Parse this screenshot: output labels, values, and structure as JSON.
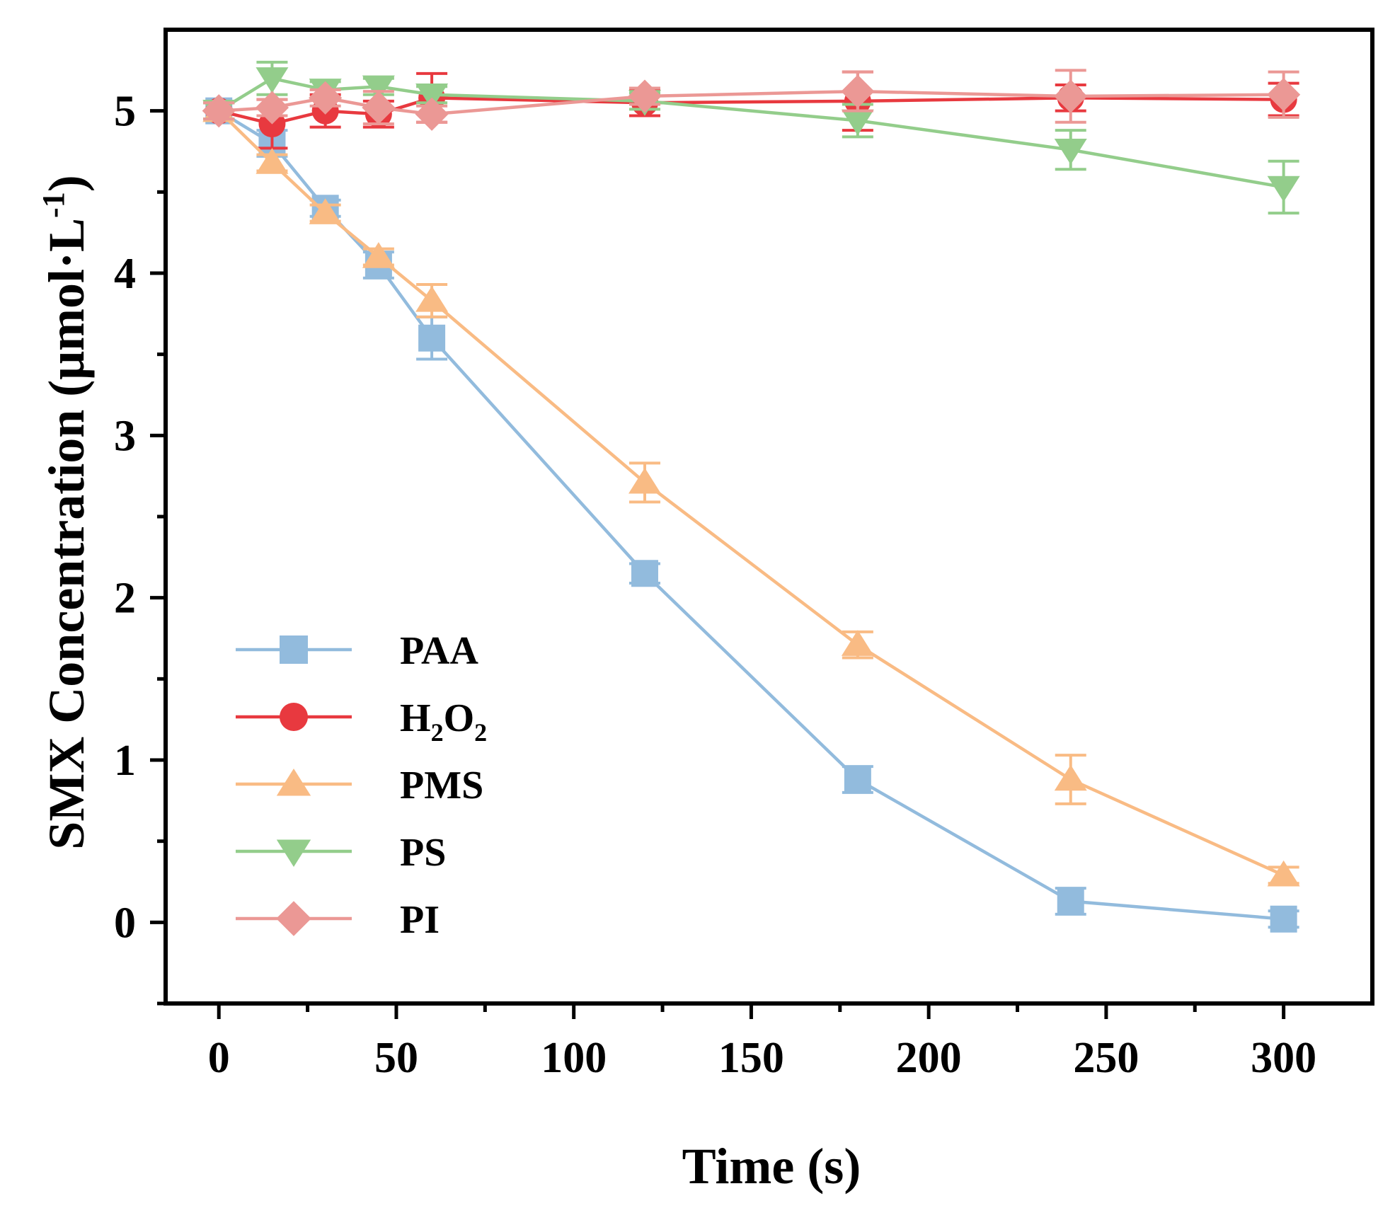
{
  "chart_data": {
    "type": "line",
    "title": "",
    "xlabel": "Time (s)",
    "ylabel": "SMX Concentration (μmol·L",
    "ylabel_sup": "-1",
    "ylabel_close": ")",
    "xlim": [
      -15,
      325
    ],
    "ylim": [
      -0.5,
      5.5
    ],
    "xticks": [
      0,
      50,
      100,
      150,
      200,
      250,
      300
    ],
    "xtick_labels": [
      "0",
      "50",
      "100",
      "150",
      "200",
      "250",
      "300"
    ],
    "xminor": [
      25,
      75,
      125,
      175,
      225,
      275
    ],
    "yticks": [
      0,
      1,
      2,
      3,
      4,
      5
    ],
    "ytick_labels": [
      "0",
      "1",
      "2",
      "3",
      "4",
      "5"
    ],
    "yminor": [
      -0.5,
      0.5,
      1.5,
      2.5,
      3.5,
      4.5
    ],
    "grid": false,
    "legend_position": "bottom-left",
    "x": [
      0,
      15,
      30,
      45,
      60,
      120,
      180,
      240,
      300
    ],
    "series": [
      {
        "name": "PAA",
        "marker": "square",
        "color": "#92bbdd",
        "values": [
          5.0,
          4.8,
          4.4,
          4.05,
          3.6,
          2.15,
          0.88,
          0.13,
          0.02
        ],
        "errors": [
          0.05,
          0.08,
          0.05,
          0.08,
          0.13,
          0.06,
          0.08,
          0.08,
          0.05
        ]
      },
      {
        "name": "H2O2",
        "label_main": "H",
        "label_sub1": "2",
        "label_mid": "O",
        "label_sub2": "2",
        "marker": "circle",
        "color": "#e8393f",
        "values": [
          5.0,
          4.92,
          5.0,
          4.98,
          5.08,
          5.05,
          5.06,
          5.08,
          5.07
        ],
        "errors": [
          0.05,
          0.15,
          0.1,
          0.08,
          0.15,
          0.08,
          0.18,
          0.08,
          0.1
        ]
      },
      {
        "name": "PMS",
        "marker": "triangle-up",
        "color": "#f9bb84",
        "values": [
          5.0,
          4.68,
          4.37,
          4.1,
          3.83,
          2.71,
          1.71,
          0.88,
          0.29
        ],
        "errors": [
          0.05,
          0.05,
          0.05,
          0.05,
          0.1,
          0.12,
          0.08,
          0.15,
          0.05
        ]
      },
      {
        "name": "PS",
        "marker": "triangle-down",
        "color": "#93cd8b",
        "values": [
          5.0,
          5.2,
          5.13,
          5.15,
          5.1,
          5.06,
          4.94,
          4.76,
          4.53
        ],
        "errors": [
          0.05,
          0.1,
          0.05,
          0.05,
          0.05,
          0.05,
          0.1,
          0.12,
          0.16
        ]
      },
      {
        "name": "PI",
        "marker": "diamond",
        "color": "#eb9895",
        "values": [
          5.0,
          5.02,
          5.08,
          5.02,
          4.98,
          5.09,
          5.12,
          5.09,
          5.1
        ],
        "errors": [
          0.05,
          0.05,
          0.05,
          0.1,
          0.05,
          0.05,
          0.12,
          0.16,
          0.14
        ]
      }
    ]
  }
}
